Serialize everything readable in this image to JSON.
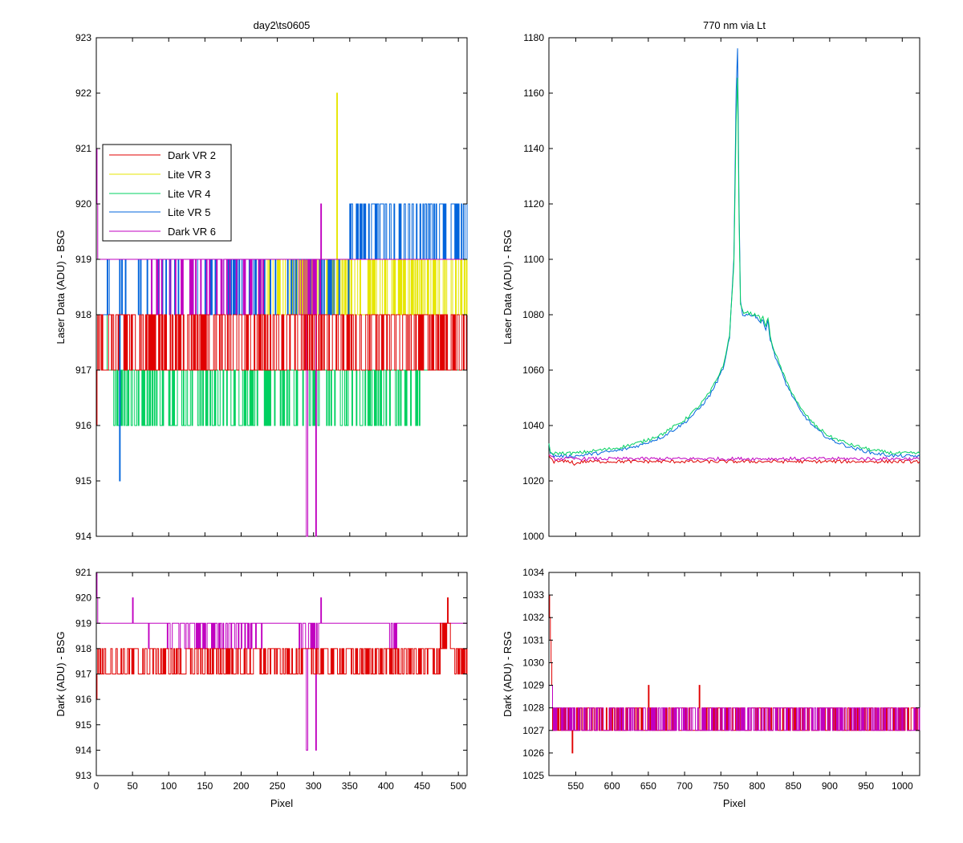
{
  "chart_data": [
    {
      "id": "top-left",
      "type": "line",
      "title": "day2\\ts0605",
      "xlabel": "",
      "ylabel": "Laser Data (ADU) - BSG",
      "xlim": [
        0,
        512
      ],
      "ylim": [
        914,
        923
      ],
      "xticks": [
        0,
        50,
        100,
        150,
        200,
        250,
        300,
        350,
        400,
        450,
        500
      ],
      "yticks": [
        914,
        915,
        916,
        917,
        918,
        919,
        920,
        921,
        922,
        923
      ],
      "show_xtick_labels": false,
      "legend": {
        "placement": "upper-left",
        "entries": [
          "Dark VR 2",
          "Lite VR 3",
          "Lite VR 4",
          "Lite VR 5",
          "Dark VR 6"
        ]
      },
      "series": [
        {
          "name": "Dark VR 2",
          "color": "#e00000",
          "values": "step noise between 917 and 918 across pixels 0-512; initial spikes 916-920 near pixel 0-5"
        },
        {
          "name": "Lite VR 3",
          "color": "#e6e600",
          "values": "steps between 918 and 919 from pixel ~220 to 512; spike to 922 at pixel ~332"
        },
        {
          "name": "Lite VR 4",
          "color": "#00d060",
          "values": "steps between 916 and 917 from pixel 15 to 450; baseline 917"
        },
        {
          "name": "Lite VR 5",
          "color": "#0064dc",
          "values": "steps between 918 and 919 early, 919-920 from pixel ~350 to 512; dip to 915 at pixel ~32"
        },
        {
          "name": "Dark VR 6",
          "color": "#c000c0",
          "values": "mostly 919 with dips to 918; dip to 914 near pixel 290 and 303; spike 920 at 310"
        }
      ]
    },
    {
      "id": "top-right",
      "type": "line",
      "title": "770 nm via Lt",
      "xlabel": "",
      "ylabel": "Laser Data (ADU) - RSG",
      "xlim": [
        513,
        1024
      ],
      "ylim": [
        1000,
        1180
      ],
      "xticks": [
        550,
        600,
        650,
        700,
        750,
        800,
        850,
        900,
        950,
        1000
      ],
      "yticks": [
        1000,
        1020,
        1040,
        1060,
        1080,
        1100,
        1120,
        1140,
        1160,
        1180
      ],
      "show_xtick_labels": false,
      "series": [
        {
          "name": "Lite VR 5",
          "color": "#0064dc",
          "x": [
            513,
            515,
            520,
            530,
            550,
            580,
            610,
            640,
            670,
            700,
            720,
            735,
            745,
            755,
            762,
            768,
            771,
            773,
            775,
            777,
            780,
            785,
            795,
            800,
            805,
            808,
            812,
            815,
            818,
            825,
            840,
            860,
            880,
            900,
            930,
            960,
            990,
            1024
          ],
          "y": [
            1034,
            1030,
            1029,
            1029,
            1029,
            1030,
            1031,
            1033,
            1036,
            1041,
            1046,
            1051,
            1056,
            1062,
            1072,
            1100,
            1160,
            1176,
            1120,
            1085,
            1080,
            1080,
            1080,
            1079,
            1077,
            1078,
            1075,
            1078,
            1071,
            1065,
            1055,
            1045,
            1039,
            1035,
            1032,
            1030,
            1029,
            1029
          ]
        },
        {
          "name": "Lite VR 4",
          "color": "#00d060",
          "x": [
            513,
            515,
            520,
            530,
            550,
            580,
            610,
            640,
            670,
            700,
            720,
            735,
            745,
            755,
            762,
            768,
            771,
            773,
            775,
            777,
            780,
            785,
            795,
            800,
            805,
            808,
            812,
            815,
            818,
            825,
            840,
            860,
            880,
            900,
            930,
            960,
            990,
            1024
          ],
          "y": [
            1033,
            1030,
            1030,
            1030,
            1030,
            1031,
            1032,
            1034,
            1037,
            1042,
            1047,
            1052,
            1057,
            1063,
            1073,
            1098,
            1150,
            1165,
            1115,
            1084,
            1081,
            1081,
            1080,
            1080,
            1078,
            1079,
            1076,
            1079,
            1072,
            1066,
            1056,
            1046,
            1040,
            1036,
            1033,
            1031,
            1030,
            1030
          ]
        },
        {
          "name": "Dark VR 2",
          "color": "#e00000",
          "x": [
            513,
            520,
            545,
            546,
            560,
            650,
            720,
            800,
            900,
            1024
          ],
          "y": [
            1029,
            1027,
            1027,
            1026,
            1027,
            1027,
            1027,
            1027,
            1027,
            1027
          ]
        },
        {
          "name": "Dark VR 6",
          "color": "#c000c0",
          "x": [
            513,
            520,
            560,
            650,
            720,
            800,
            900,
            1024
          ],
          "y": [
            1029,
            1028,
            1028,
            1028,
            1028,
            1028,
            1028,
            1028
          ]
        }
      ]
    },
    {
      "id": "bottom-left",
      "type": "line",
      "title": "",
      "xlabel": "Pixel",
      "ylabel": "Dark (ADU) - BSG",
      "xlim": [
        0,
        512
      ],
      "ylim": [
        913,
        921
      ],
      "xticks": [
        0,
        50,
        100,
        150,
        200,
        250,
        300,
        350,
        400,
        450,
        500
      ],
      "yticks": [
        913,
        914,
        915,
        916,
        917,
        918,
        919,
        920,
        921
      ],
      "show_xtick_labels": true,
      "series": [
        {
          "name": "Dark VR 2",
          "color": "#e00000",
          "values": "steps between 917 and 918 from pixel 0-512; initial spike 916-921 at pixel 0-5; 919-920 near pixel 480-485"
        },
        {
          "name": "Dark VR 6",
          "color": "#c000c0",
          "values": "mostly 919 with steps to 918; spike 920 at pixel 50 and 310; dips to 914 near pixel 290 and 303"
        }
      ]
    },
    {
      "id": "bottom-right",
      "type": "line",
      "title": "",
      "xlabel": "Pixel",
      "ylabel": "Dark (ADU) - RSG",
      "xlim": [
        513,
        1024
      ],
      "ylim": [
        1025,
        1034
      ],
      "xticks": [
        550,
        600,
        650,
        700,
        750,
        800,
        850,
        900,
        950,
        1000
      ],
      "yticks": [
        1025,
        1026,
        1027,
        1028,
        1029,
        1030,
        1031,
        1032,
        1033,
        1034
      ],
      "show_xtick_labels": true,
      "series": [
        {
          "name": "Dark VR 2",
          "color": "#e00000",
          "values": "starts 1033 at pixel 513 dropping to 1028-1029 by pixel 518; steps 1027-1028 across range; dip to 1026 at pixel 545; spikes to 1029 at pixel 650 and 720"
        },
        {
          "name": "Dark VR 6",
          "color": "#c000c0",
          "values": "steps 1027-1028 across range"
        }
      ]
    }
  ]
}
